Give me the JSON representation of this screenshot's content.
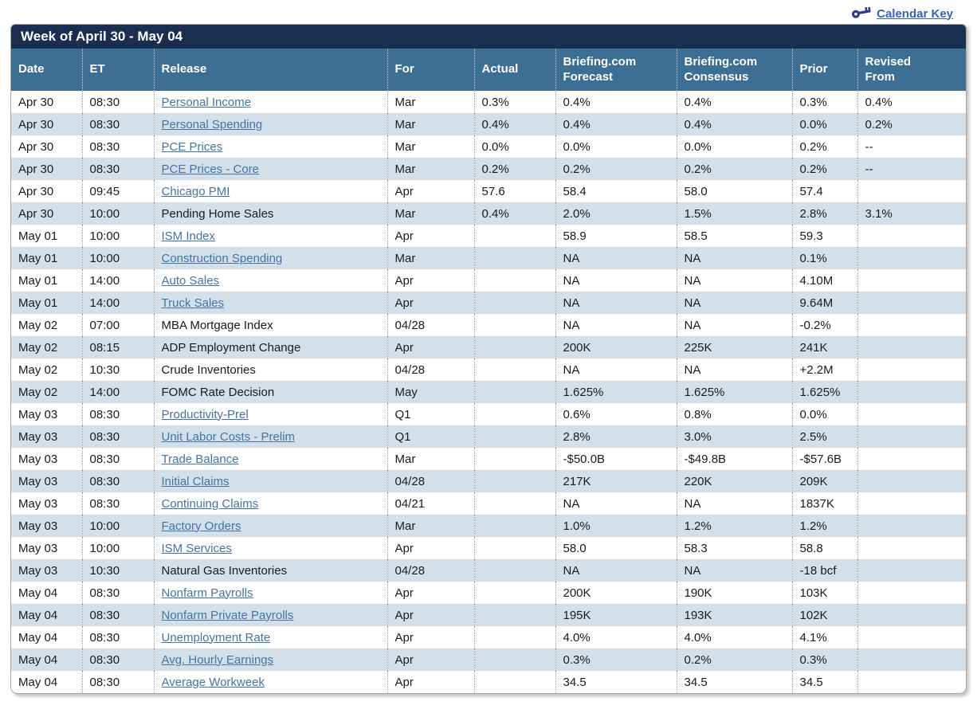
{
  "page": {
    "calendar_key_label": "Calendar Key"
  },
  "colors": {
    "title_bar": "#1a2e52",
    "header_bg": "#3d6e93",
    "row_alt": "#d4e0e9",
    "link": "#4474a4",
    "calendar_key_link": "#3462be",
    "key_icon": "#2b3a94"
  },
  "table": {
    "title": "Week of April 30 - May 04",
    "columns": [
      "Date",
      "ET",
      "Release",
      "For",
      "Actual",
      "Briefing.com Forecast",
      "Briefing.com Consensus",
      "Prior",
      "Revised From"
    ],
    "rows": [
      {
        "date": "Apr 30",
        "et": "08:30",
        "release": "Personal Income",
        "link": true,
        "for": "Mar",
        "actual": "0.3%",
        "forecast": "0.4%",
        "consensus": "0.4%",
        "prior": "0.3%",
        "revised": "0.4%"
      },
      {
        "date": "Apr 30",
        "et": "08:30",
        "release": "Personal Spending",
        "link": true,
        "for": "Mar",
        "actual": "0.4%",
        "forecast": "0.4%",
        "consensus": "0.4%",
        "prior": "0.0%",
        "revised": "0.2%"
      },
      {
        "date": "Apr 30",
        "et": "08:30",
        "release": "PCE Prices",
        "link": true,
        "for": "Mar",
        "actual": "0.0%",
        "forecast": "0.0%",
        "consensus": "0.0%",
        "prior": "0.2%",
        "revised": "--"
      },
      {
        "date": "Apr 30",
        "et": "08:30",
        "release": "PCE Prices - Core",
        "link": true,
        "for": "Mar",
        "actual": "0.2%",
        "forecast": "0.2%",
        "consensus": "0.2%",
        "prior": "0.2%",
        "revised": "--"
      },
      {
        "date": "Apr 30",
        "et": "09:45",
        "release": "Chicago PMI",
        "link": true,
        "for": "Apr",
        "actual": "57.6",
        "forecast": "58.4",
        "consensus": "58.0",
        "prior": "57.4",
        "revised": ""
      },
      {
        "date": "Apr 30",
        "et": "10:00",
        "release": "Pending Home Sales",
        "link": false,
        "for": "Mar",
        "actual": "0.4%",
        "forecast": "2.0%",
        "consensus": "1.5%",
        "prior": "2.8%",
        "revised": "3.1%"
      },
      {
        "date": "May 01",
        "et": "10:00",
        "release": "ISM Index",
        "link": true,
        "for": "Apr",
        "actual": "",
        "forecast": "58.9",
        "consensus": "58.5",
        "prior": "59.3",
        "revised": ""
      },
      {
        "date": "May 01",
        "et": "10:00",
        "release": "Construction Spending",
        "link": true,
        "for": "Mar",
        "actual": "",
        "forecast": "NA",
        "consensus": "NA",
        "prior": "0.1%",
        "revised": ""
      },
      {
        "date": "May 01",
        "et": "14:00",
        "release": "Auto Sales",
        "link": true,
        "for": "Apr",
        "actual": "",
        "forecast": "NA",
        "consensus": "NA",
        "prior": "4.10M",
        "revised": ""
      },
      {
        "date": "May 01",
        "et": "14:00",
        "release": "Truck Sales",
        "link": true,
        "for": "Apr",
        "actual": "",
        "forecast": "NA",
        "consensus": "NA",
        "prior": "9.64M",
        "revised": ""
      },
      {
        "date": "May 02",
        "et": "07:00",
        "release": "MBA Mortgage Index",
        "link": false,
        "for": "04/28",
        "actual": "",
        "forecast": "NA",
        "consensus": "NA",
        "prior": "-0.2%",
        "revised": ""
      },
      {
        "date": "May 02",
        "et": "08:15",
        "release": "ADP Employment Change",
        "link": false,
        "for": "Apr",
        "actual": "",
        "forecast": "200K",
        "consensus": "225K",
        "prior": "241K",
        "revised": ""
      },
      {
        "date": "May 02",
        "et": "10:30",
        "release": "Crude Inventories",
        "link": false,
        "for": "04/28",
        "actual": "",
        "forecast": "NA",
        "consensus": "NA",
        "prior": "+2.2M",
        "revised": ""
      },
      {
        "date": "May 02",
        "et": "14:00",
        "release": "FOMC Rate Decision",
        "link": false,
        "for": "May",
        "actual": "",
        "forecast": "1.625%",
        "consensus": "1.625%",
        "prior": "1.625%",
        "revised": ""
      },
      {
        "date": "May 03",
        "et": "08:30",
        "release": "Productivity-Prel",
        "link": true,
        "for": "Q1",
        "actual": "",
        "forecast": "0.6%",
        "consensus": "0.8%",
        "prior": "0.0%",
        "revised": ""
      },
      {
        "date": "May 03",
        "et": "08:30",
        "release": "Unit Labor Costs - Prelim",
        "link": true,
        "for": "Q1",
        "actual": "",
        "forecast": "2.8%",
        "consensus": "3.0%",
        "prior": "2.5%",
        "revised": ""
      },
      {
        "date": "May 03",
        "et": "08:30",
        "release": "Trade Balance",
        "link": true,
        "for": "Mar",
        "actual": "",
        "forecast": "-$50.0B",
        "consensus": "-$49.8B",
        "prior": "-$57.6B",
        "revised": ""
      },
      {
        "date": "May 03",
        "et": "08:30",
        "release": "Initial Claims",
        "link": true,
        "for": "04/28",
        "actual": "",
        "forecast": "217K",
        "consensus": "220K",
        "prior": "209K",
        "revised": ""
      },
      {
        "date": "May 03",
        "et": "08:30",
        "release": "Continuing Claims",
        "link": true,
        "for": "04/21",
        "actual": "",
        "forecast": "NA",
        "consensus": "NA",
        "prior": "1837K",
        "revised": ""
      },
      {
        "date": "May 03",
        "et": "10:00",
        "release": "Factory Orders",
        "link": true,
        "for": "Mar",
        "actual": "",
        "forecast": "1.0%",
        "consensus": "1.2%",
        "prior": "1.2%",
        "revised": ""
      },
      {
        "date": "May 03",
        "et": "10:00",
        "release": "ISM Services",
        "link": true,
        "for": "Apr",
        "actual": "",
        "forecast": "58.0",
        "consensus": "58.3",
        "prior": "58.8",
        "revised": ""
      },
      {
        "date": "May 03",
        "et": "10:30",
        "release": "Natural Gas Inventories",
        "link": false,
        "for": "04/28",
        "actual": "",
        "forecast": "NA",
        "consensus": "NA",
        "prior": "-18 bcf",
        "revised": ""
      },
      {
        "date": "May 04",
        "et": "08:30",
        "release": "Nonfarm Payrolls",
        "link": true,
        "for": "Apr",
        "actual": "",
        "forecast": "200K",
        "consensus": "190K",
        "prior": "103K",
        "revised": ""
      },
      {
        "date": "May 04",
        "et": "08:30",
        "release": "Nonfarm Private Payrolls",
        "link": true,
        "for": "Apr",
        "actual": "",
        "forecast": "195K",
        "consensus": "193K",
        "prior": "102K",
        "revised": ""
      },
      {
        "date": "May 04",
        "et": "08:30",
        "release": "Unemployment Rate",
        "link": true,
        "for": "Apr",
        "actual": "",
        "forecast": "4.0%",
        "consensus": "4.0%",
        "prior": "4.1%",
        "revised": ""
      },
      {
        "date": "May 04",
        "et": "08:30",
        "release": "Avg. Hourly Earnings",
        "link": true,
        "for": "Apr",
        "actual": "",
        "forecast": "0.3%",
        "consensus": "0.2%",
        "prior": "0.3%",
        "revised": ""
      },
      {
        "date": "May 04",
        "et": "08:30",
        "release": "Average Workweek",
        "link": true,
        "for": "Apr",
        "actual": "",
        "forecast": "34.5",
        "consensus": "34.5",
        "prior": "34.5",
        "revised": ""
      }
    ]
  }
}
